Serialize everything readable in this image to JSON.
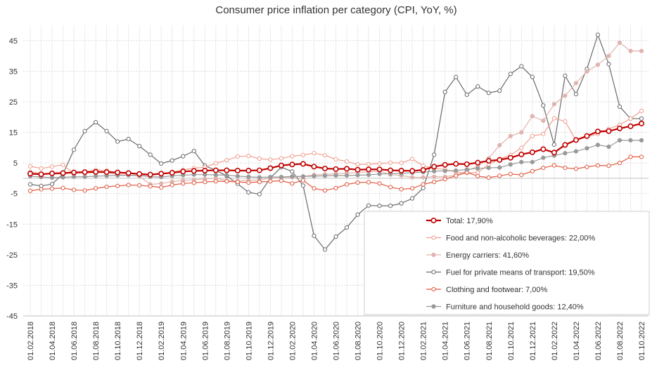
{
  "chart_data": {
    "type": "line",
    "title": "Consumer price inflation per category (CPI, YoY, %)",
    "xlabel": "",
    "ylabel": "",
    "ylim": [
      -45,
      50
    ],
    "yticks": [
      45,
      35,
      25,
      15,
      5,
      -5,
      -15,
      -25,
      -35,
      -45
    ],
    "grid": true,
    "legend_position": "bottom-right",
    "x": [
      "01.02.2018",
      "01.03.2018",
      "01.04.2018",
      "01.05.2018",
      "01.06.2018",
      "01.07.2018",
      "01.08.2018",
      "01.09.2018",
      "01.10.2018",
      "01.11.2018",
      "01.12.2018",
      "01.01.2019",
      "01.02.2019",
      "01.03.2019",
      "01.04.2019",
      "01.05.2019",
      "01.06.2019",
      "01.07.2019",
      "01.08.2019",
      "01.09.2019",
      "01.10.2019",
      "01.11.2019",
      "01.12.2019",
      "01.01.2020",
      "01.02.2020",
      "01.03.2020",
      "01.04.2020",
      "01.05.2020",
      "01.06.2020",
      "01.07.2020",
      "01.08.2020",
      "01.09.2020",
      "01.10.2020",
      "01.11.2020",
      "01.12.2020",
      "01.01.2021",
      "01.02.2021",
      "01.03.2021",
      "01.04.2021",
      "01.05.2021",
      "01.06.2021",
      "01.07.2021",
      "01.08.2021",
      "01.09.2021",
      "01.10.2021",
      "01.11.2021",
      "01.12.2021",
      "01.01.2022",
      "01.02.2022",
      "01.03.2022",
      "01.04.2022",
      "01.05.2022",
      "01.06.2022",
      "01.07.2022",
      "01.08.2022",
      "01.09.2022",
      "01.10.2022"
    ],
    "xtick_labels": [
      "01.02.2018",
      "01.04.2018",
      "01.06.2018",
      "01.08.2018",
      "01.10.2018",
      "01.12.2018",
      "01.02.2019",
      "01.04.2019",
      "01.06.2019",
      "01.08.2019",
      "01.10.2019",
      "01.12.2019",
      "01.02.2020",
      "01.04.2020",
      "01.06.2020",
      "01.08.2020",
      "01.10.2020",
      "01.12.2020",
      "01.02.2021",
      "01.04.2021",
      "01.06.2021",
      "01.08.2021",
      "01.10.2021",
      "01.12.2021",
      "01.02.2022",
      "01.04.2022",
      "01.06.2022",
      "01.08.2022",
      "01.10.2022"
    ],
    "series": [
      {
        "name": "Total: 17,90%",
        "color": "#c00000",
        "marker": "open",
        "width": 2.2,
        "values": [
          1.5,
          1.3,
          1.6,
          1.7,
          1.9,
          2.0,
          2.1,
          2.0,
          1.9,
          1.7,
          1.4,
          1.2,
          1.5,
          1.8,
          2.2,
          2.4,
          2.5,
          2.6,
          2.6,
          2.5,
          2.5,
          2.6,
          3.3,
          4.2,
          4.5,
          4.7,
          3.8,
          3.2,
          3.0,
          3.1,
          2.8,
          2.9,
          2.9,
          2.6,
          2.5,
          2.4,
          2.7,
          3.8,
          4.4,
          4.7,
          4.6,
          5.1,
          5.7,
          6.0,
          6.7,
          7.8,
          8.5,
          9.5,
          8.4,
          10.9,
          12.5,
          13.8,
          15.3,
          15.4,
          16.3,
          17.0,
          17.9
        ]
      },
      {
        "name": "Food and non-alcoholic beverages: 22,00%",
        "color": "#f0a090",
        "marker": "open",
        "width": 1.2,
        "values": [
          3.9,
          3.2,
          3.8,
          4.4,
          1.4,
          2.1,
          2.7,
          2.5,
          1.8,
          1.6,
          1.2,
          0.9,
          1.5,
          2.0,
          2.7,
          3.3,
          3.6,
          4.9,
          5.9,
          7.1,
          7.3,
          6.4,
          6.1,
          6.5,
          7.2,
          7.6,
          8.2,
          7.5,
          6.2,
          5.5,
          4.5,
          4.6,
          4.8,
          5.1,
          5.0,
          6.3,
          4.1,
          3.2,
          2.9,
          2.0,
          1.7,
          1.9,
          4.5,
          6.3,
          7.6,
          9.9,
          13.8,
          14.5,
          19.6,
          18.6,
          12.4,
          13.5,
          14.5,
          16.1,
          17.5,
          19.5,
          22.0
        ]
      },
      {
        "name": "Energy carriers: 41,60%",
        "color": "#e0b4ae",
        "marker": "filled",
        "width": 1.2,
        "values": [
          2.1,
          1.6,
          1.3,
          1.5,
          1.8,
          1.7,
          1.9,
          1.9,
          1.2,
          1.0,
          0.7,
          -2.0,
          -1.7,
          -1.1,
          -0.7,
          -0.5,
          -0.2,
          0.0,
          -0.8,
          -0.9,
          -0.7,
          -0.6,
          0.0,
          0.2,
          0.3,
          0.6,
          1.1,
          1.3,
          1.5,
          1.7,
          1.9,
          2.1,
          2.3,
          1.2,
          0.9,
          0.3,
          0.3,
          0.5,
          0.5,
          1.0,
          2.4,
          3.9,
          6.5,
          10.8,
          13.8,
          15.0,
          20.3,
          18.8,
          24.2,
          27.0,
          31.1,
          34.9,
          37.1,
          40.0,
          44.3,
          41.6,
          41.6
        ]
      },
      {
        "name": "Fuel for private means of transport: 19,50%",
        "color": "#6a6a6a",
        "marker": "open",
        "width": 1.2,
        "values": [
          -2.0,
          -2.5,
          -1.9,
          1.4,
          9.3,
          15.4,
          18.3,
          15.4,
          12.0,
          12.8,
          10.5,
          7.7,
          4.8,
          5.8,
          7.2,
          8.9,
          4.1,
          2.6,
          0.8,
          -1.8,
          -4.6,
          -5.2,
          0.1,
          3.6,
          2.2,
          -2.4,
          -18.8,
          -23.3,
          -19.1,
          -16.1,
          -11.9,
          -8.9,
          -9.0,
          -9.0,
          -8.2,
          -6.6,
          -3.2,
          7.7,
          28.2,
          33.1,
          27.3,
          30.0,
          27.9,
          28.6,
          34.1,
          36.6,
          33.1,
          23.8,
          11.0,
          33.5,
          27.5,
          35.7,
          46.9,
          37.3,
          23.4,
          19.5,
          19.5
        ]
      },
      {
        "name": "Clothing and footwear: 7,00%",
        "color": "#e05a40",
        "marker": "open",
        "width": 1.2,
        "values": [
          -4.1,
          -3.6,
          -3.4,
          -3.2,
          -3.8,
          -4.0,
          -3.3,
          -2.8,
          -2.5,
          -2.2,
          -2.3,
          -2.6,
          -3.0,
          -2.2,
          -1.7,
          -1.5,
          -1.2,
          -1.0,
          -1.0,
          -1.2,
          -1.4,
          -1.2,
          -1.0,
          -0.8,
          -1.7,
          -0.7,
          -3.3,
          -4.0,
          -3.2,
          -2.0,
          -1.4,
          -1.3,
          -1.7,
          -2.9,
          -3.6,
          -3.3,
          -2.0,
          -1.2,
          -0.3,
          0.8,
          1.9,
          0.7,
          0.2,
          0.8,
          1.4,
          1.1,
          2.3,
          3.4,
          4.2,
          3.4,
          3.1,
          3.7,
          4.2,
          4.1,
          5.0,
          7.0,
          7.0
        ]
      },
      {
        "name": "Furniture and household goods: 12,40%",
        "color": "#999999",
        "marker": "filled",
        "width": 1.2,
        "values": [
          0.7,
          0.4,
          0.2,
          0.3,
          0.5,
          0.5,
          0.7,
          0.8,
          0.9,
          1.0,
          0.9,
          0.5,
          0.4,
          0.8,
          1.0,
          1.2,
          1.2,
          1.1,
          1.0,
          0.7,
          0.5,
          0.3,
          0.4,
          0.4,
          0.6,
          0.6,
          0.7,
          0.8,
          0.9,
          0.9,
          1.0,
          1.1,
          1.4,
          1.5,
          1.6,
          1.8,
          2.0,
          2.3,
          2.4,
          2.5,
          2.9,
          3.2,
          3.4,
          3.5,
          4.5,
          5.3,
          5.3,
          6.7,
          7.4,
          8.2,
          8.8,
          9.8,
          10.9,
          10.3,
          12.4,
          12.4,
          12.4
        ]
      }
    ]
  }
}
